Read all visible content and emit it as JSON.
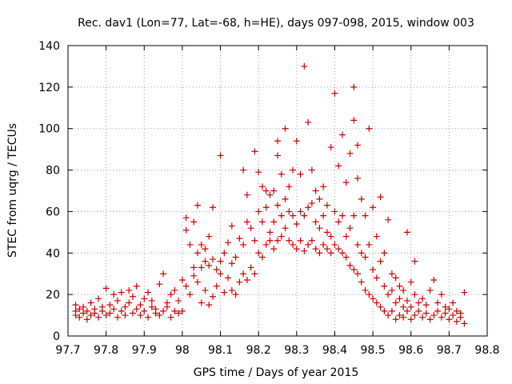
{
  "chart_data": {
    "type": "scatter",
    "title": "Rec. dav1 (Lon=77, Lat=-68, h=HE), days 097-098, 2015, window 003",
    "xlabel": "GPS time / Days of year 2015",
    "ylabel": "STEC from uqrg / TECUs",
    "xlim": [
      97.7,
      98.8
    ],
    "ylim": [
      0,
      140
    ],
    "xticks": [
      "97.7",
      "97.8",
      "97.9",
      "98",
      "98.1",
      "98.2",
      "98.3",
      "98.4",
      "98.5",
      "98.6",
      "98.7",
      "98.8"
    ],
    "yticks": [
      "0",
      "20",
      "40",
      "60",
      "80",
      "100",
      "120",
      "140"
    ],
    "grid": true,
    "marker": "+",
    "color": "#cc0000",
    "series": [
      {
        "name": "STEC",
        "points": [
          [
            97.72,
            10
          ],
          [
            97.72,
            12
          ],
          [
            97.72,
            15
          ],
          [
            97.73,
            9
          ],
          [
            97.73,
            13
          ],
          [
            97.74,
            11
          ],
          [
            97.74,
            14
          ],
          [
            97.75,
            8
          ],
          [
            97.75,
            12
          ],
          [
            97.76,
            10
          ],
          [
            97.76,
            16
          ],
          [
            97.77,
            11
          ],
          [
            97.77,
            13
          ],
          [
            97.78,
            9
          ],
          [
            97.78,
            18
          ],
          [
            97.79,
            12
          ],
          [
            97.79,
            14
          ],
          [
            97.8,
            10
          ],
          [
            97.8,
            23
          ],
          [
            97.81,
            11
          ],
          [
            97.81,
            15
          ],
          [
            97.82,
            13
          ],
          [
            97.82,
            20
          ],
          [
            97.83,
            9
          ],
          [
            97.83,
            17
          ],
          [
            97.84,
            12
          ],
          [
            97.84,
            21
          ],
          [
            97.85,
            10
          ],
          [
            97.85,
            14
          ],
          [
            97.86,
            16
          ],
          [
            97.86,
            22
          ],
          [
            97.87,
            11
          ],
          [
            97.87,
            19
          ],
          [
            97.88,
            13
          ],
          [
            97.88,
            24
          ],
          [
            97.89,
            10
          ],
          [
            97.89,
            15
          ],
          [
            97.9,
            12
          ],
          [
            97.9,
            18
          ],
          [
            97.91,
            9
          ],
          [
            97.91,
            21
          ],
          [
            97.92,
            14
          ],
          [
            97.92,
            17
          ],
          [
            97.93,
            11
          ],
          [
            97.93,
            13
          ],
          [
            97.94,
            10
          ],
          [
            97.94,
            25
          ],
          [
            97.95,
            12
          ],
          [
            97.95,
            30
          ],
          [
            97.96,
            16
          ],
          [
            97.96,
            14
          ],
          [
            97.97,
            9
          ],
          [
            97.97,
            20
          ],
          [
            97.98,
            12
          ],
          [
            97.98,
            22
          ],
          [
            97.99,
            11
          ],
          [
            97.99,
            17
          ],
          [
            98.0,
            12
          ],
          [
            98.0,
            27
          ],
          [
            98.01,
            24
          ],
          [
            98.01,
            51
          ],
          [
            98.01,
            57
          ],
          [
            98.02,
            20
          ],
          [
            98.02,
            44
          ],
          [
            98.03,
            29
          ],
          [
            98.03,
            33
          ],
          [
            98.03,
            55
          ],
          [
            98.04,
            26
          ],
          [
            98.04,
            40
          ],
          [
            98.04,
            63
          ],
          [
            98.05,
            16
          ],
          [
            98.05,
            33
          ],
          [
            98.05,
            44
          ],
          [
            98.06,
            22
          ],
          [
            98.06,
            36
          ],
          [
            98.06,
            42
          ],
          [
            98.07,
            15
          ],
          [
            98.07,
            34
          ],
          [
            98.07,
            48
          ],
          [
            98.08,
            19
          ],
          [
            98.08,
            37
          ],
          [
            98.08,
            62
          ],
          [
            98.09,
            24
          ],
          [
            98.09,
            32
          ],
          [
            98.1,
            30
          ],
          [
            98.1,
            36
          ],
          [
            98.1,
            87
          ],
          [
            98.11,
            21
          ],
          [
            98.11,
            40
          ],
          [
            98.12,
            28
          ],
          [
            98.12,
            45
          ],
          [
            98.13,
            22
          ],
          [
            98.13,
            35
          ],
          [
            98.13,
            53
          ],
          [
            98.14,
            20
          ],
          [
            98.14,
            38
          ],
          [
            98.15,
            26
          ],
          [
            98.15,
            47
          ],
          [
            98.16,
            30
          ],
          [
            98.16,
            44
          ],
          [
            98.16,
            80
          ],
          [
            98.17,
            27
          ],
          [
            98.17,
            55
          ],
          [
            98.17,
            68
          ],
          [
            98.18,
            33
          ],
          [
            98.18,
            52
          ],
          [
            98.19,
            30
          ],
          [
            98.19,
            46
          ],
          [
            98.19,
            89
          ],
          [
            98.2,
            40
          ],
          [
            98.2,
            60
          ],
          [
            98.2,
            79
          ],
          [
            98.21,
            38
          ],
          [
            98.21,
            55
          ],
          [
            98.21,
            72
          ],
          [
            98.22,
            44
          ],
          [
            98.22,
            62
          ],
          [
            98.22,
            70
          ],
          [
            98.23,
            46
          ],
          [
            98.23,
            50
          ],
          [
            98.23,
            68
          ],
          [
            98.24,
            42
          ],
          [
            98.24,
            55
          ],
          [
            98.24,
            70
          ],
          [
            98.25,
            46
          ],
          [
            98.25,
            63
          ],
          [
            98.25,
            87
          ],
          [
            98.25,
            94
          ],
          [
            98.26,
            48
          ],
          [
            98.26,
            58
          ],
          [
            98.26,
            78
          ],
          [
            98.27,
            52
          ],
          [
            98.27,
            66
          ],
          [
            98.27,
            100
          ],
          [
            98.28,
            46
          ],
          [
            98.28,
            60
          ],
          [
            98.28,
            72
          ],
          [
            98.29,
            44
          ],
          [
            98.29,
            58
          ],
          [
            98.29,
            80
          ],
          [
            98.3,
            42
          ],
          [
            98.3,
            54
          ],
          [
            98.3,
            94
          ],
          [
            98.31,
            46
          ],
          [
            98.31,
            60
          ],
          [
            98.31,
            78
          ],
          [
            98.32,
            41
          ],
          [
            98.32,
            58
          ],
          [
            98.32,
            130
          ],
          [
            98.33,
            44
          ],
          [
            98.33,
            62
          ],
          [
            98.33,
            103
          ],
          [
            98.34,
            46
          ],
          [
            98.34,
            64
          ],
          [
            98.34,
            80
          ],
          [
            98.35,
            42
          ],
          [
            98.35,
            55
          ],
          [
            98.35,
            70
          ],
          [
            98.36,
            40
          ],
          [
            98.36,
            52
          ],
          [
            98.36,
            66
          ],
          [
            98.37,
            44
          ],
          [
            98.37,
            58
          ],
          [
            98.37,
            72
          ],
          [
            98.38,
            42
          ],
          [
            98.38,
            50
          ],
          [
            98.38,
            63
          ],
          [
            98.39,
            40
          ],
          [
            98.39,
            48
          ],
          [
            98.39,
            91
          ],
          [
            98.4,
            44
          ],
          [
            98.4,
            60
          ],
          [
            98.4,
            117
          ],
          [
            98.41,
            42
          ],
          [
            98.41,
            55
          ],
          [
            98.41,
            82
          ],
          [
            98.42,
            40
          ],
          [
            98.42,
            58
          ],
          [
            98.42,
            97
          ],
          [
            98.43,
            38
          ],
          [
            98.43,
            48
          ],
          [
            98.43,
            74
          ],
          [
            98.44,
            34
          ],
          [
            98.44,
            52
          ],
          [
            98.44,
            88
          ],
          [
            98.45,
            32
          ],
          [
            98.45,
            58
          ],
          [
            98.45,
            104
          ],
          [
            98.45,
            120
          ],
          [
            98.46,
            30
          ],
          [
            98.46,
            44
          ],
          [
            98.46,
            76
          ],
          [
            98.46,
            92
          ],
          [
            98.47,
            26
          ],
          [
            98.47,
            40
          ],
          [
            98.47,
            66
          ],
          [
            98.48,
            22
          ],
          [
            98.48,
            38
          ],
          [
            98.48,
            58
          ],
          [
            98.49,
            20
          ],
          [
            98.49,
            44
          ],
          [
            98.49,
            100
          ],
          [
            98.5,
            18
          ],
          [
            98.5,
            32
          ],
          [
            98.5,
            62
          ],
          [
            98.51,
            16
          ],
          [
            98.51,
            28
          ],
          [
            98.51,
            48
          ],
          [
            98.52,
            14
          ],
          [
            98.52,
            36
          ],
          [
            98.52,
            67
          ],
          [
            98.53,
            12
          ],
          [
            98.53,
            24
          ],
          [
            98.53,
            40
          ],
          [
            98.54,
            10
          ],
          [
            98.54,
            20
          ],
          [
            98.54,
            56
          ],
          [
            98.55,
            12
          ],
          [
            98.55,
            22
          ],
          [
            98.55,
            30
          ],
          [
            98.56,
            8
          ],
          [
            98.56,
            16
          ],
          [
            98.56,
            28
          ],
          [
            98.57,
            10
          ],
          [
            98.57,
            18
          ],
          [
            98.57,
            24
          ],
          [
            98.58,
            9
          ],
          [
            98.58,
            14
          ],
          [
            98.58,
            22
          ],
          [
            98.59,
            12
          ],
          [
            98.59,
            17
          ],
          [
            98.59,
            50
          ],
          [
            98.6,
            8
          ],
          [
            98.6,
            14
          ],
          [
            98.6,
            26
          ],
          [
            98.61,
            10
          ],
          [
            98.61,
            20
          ],
          [
            98.61,
            36
          ],
          [
            98.62,
            12
          ],
          [
            98.62,
            16
          ],
          [
            98.63,
            9
          ],
          [
            98.63,
            18
          ],
          [
            98.64,
            11
          ],
          [
            98.64,
            15
          ],
          [
            98.65,
            8
          ],
          [
            98.65,
            22
          ],
          [
            98.66,
            10
          ],
          [
            98.66,
            27
          ],
          [
            98.67,
            12
          ],
          [
            98.67,
            16
          ],
          [
            98.68,
            9
          ],
          [
            98.68,
            20
          ],
          [
            98.69,
            11
          ],
          [
            98.69,
            14
          ],
          [
            98.7,
            8
          ],
          [
            98.7,
            13
          ],
          [
            98.71,
            10
          ],
          [
            98.71,
            16
          ],
          [
            98.72,
            7
          ],
          [
            98.72,
            12
          ],
          [
            98.73,
            9
          ],
          [
            98.73,
            11
          ],
          [
            98.74,
            6
          ],
          [
            98.74,
            21
          ]
        ]
      }
    ]
  }
}
